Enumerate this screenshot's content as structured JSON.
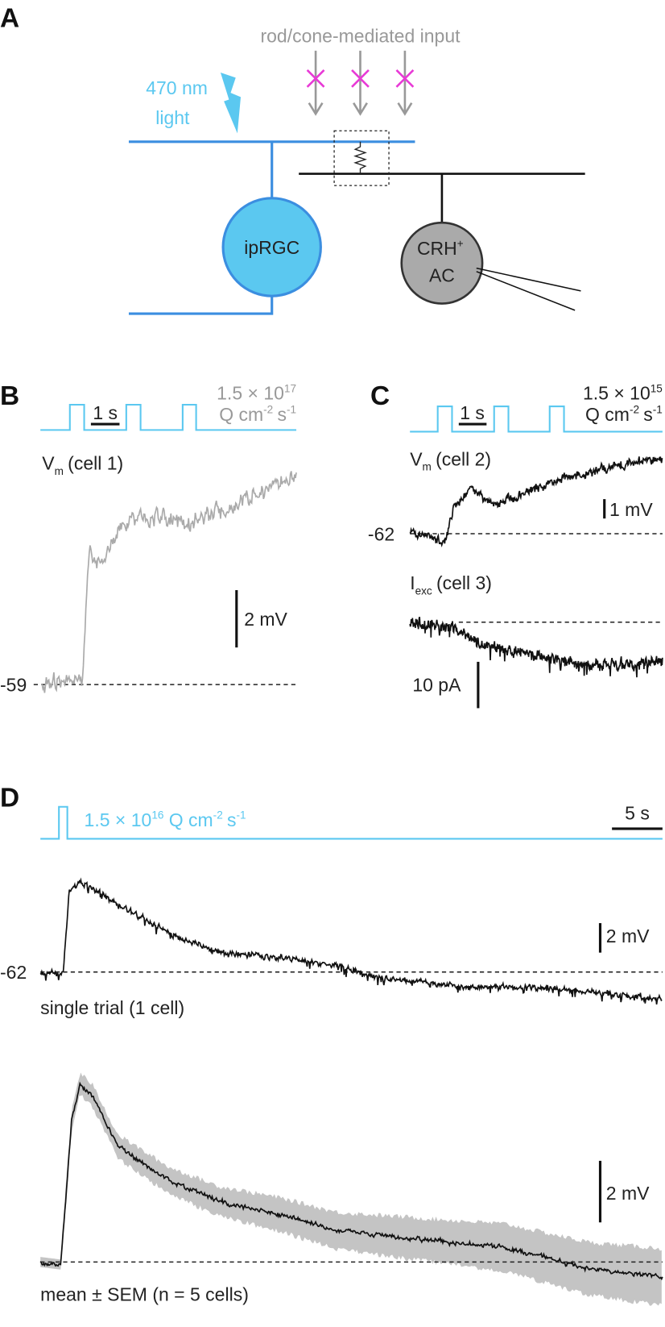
{
  "panel_a": {
    "label": "A",
    "input_label": "rod/cone-mediated input",
    "light_label": [
      "470 nm",
      "light"
    ],
    "cell_iprgc": "ipRGC",
    "cell_crh": {
      "name": "CRH",
      "sup": "+",
      "line2": "AC"
    }
  },
  "panel_b": {
    "label": "B",
    "time_scale": "1 s",
    "intensity": {
      "mantissa": "1.5 × 10",
      "exponent": "17",
      "unit": "Q cm",
      "unit_exp": "-2",
      "s": "s",
      "s_exp": "-1"
    },
    "trace_label": {
      "symbol": "V",
      "sub": "m",
      "rest": "(cell 1)"
    },
    "voltage_scale": "2 mV",
    "baseline": "-59"
  },
  "panel_c": {
    "label": "C",
    "time_scale": "1 s",
    "intensity": {
      "mantissa": "1.5 × 10",
      "exponent": "15",
      "unit": "Q cm",
      "unit_exp": "-2",
      "s": "s",
      "s_exp": "-1"
    },
    "trace1_label": {
      "symbol": "V",
      "sub": "m",
      "rest": "(cell 2)"
    },
    "voltage_scale": "1 mV",
    "baseline": "-62",
    "trace2_label": {
      "symbol": "I",
      "sub": "exc",
      "rest": "(cell 3)"
    },
    "current_scale": "10 pA"
  },
  "panel_d": {
    "label": "D",
    "intensity": {
      "mantissa": "1.5 × 10",
      "exponent": "16",
      "unit": "Q cm",
      "unit_exp": "-2",
      "s": "s",
      "s_exp": "-1"
    },
    "time_scale": "5 s",
    "single": {
      "voltage_scale": "2 mV",
      "baseline": "-62",
      "caption": "single trial (1 cell)"
    },
    "mean": {
      "voltage_scale": "2 mV",
      "caption": "mean ± SEM (n = 5 cells)"
    }
  }
}
